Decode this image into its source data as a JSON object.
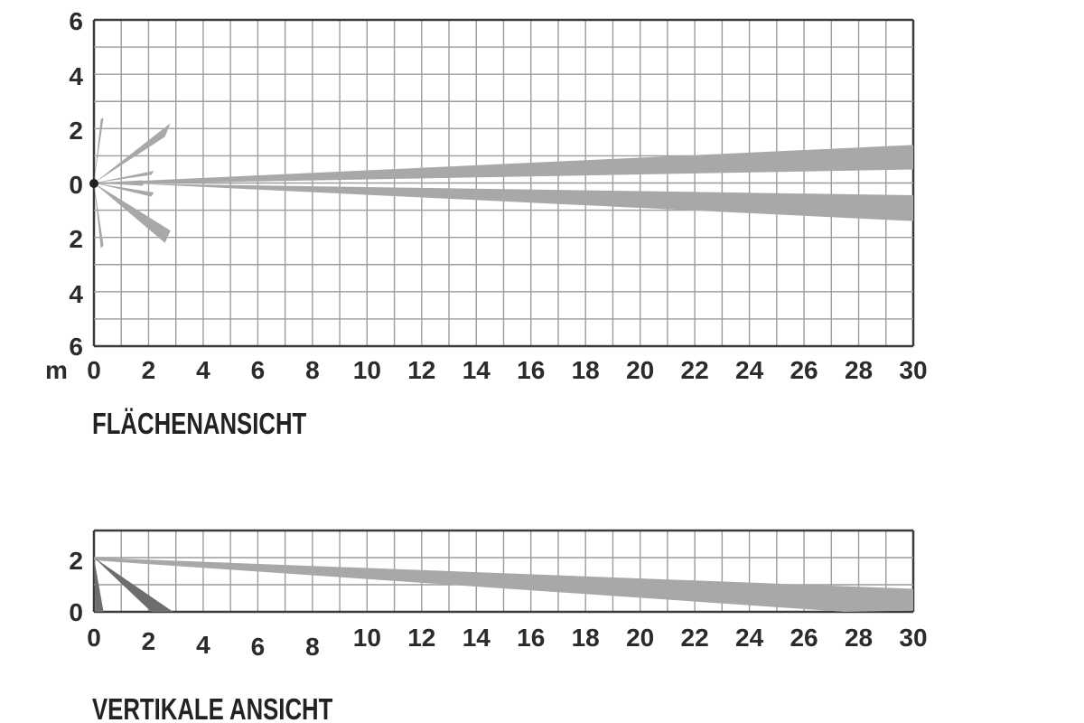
{
  "colors": {
    "grid": "#9c9c9c",
    "axis": "#3a3a3a",
    "beam": "#a8a8a8",
    "beam_dark": "#6d6d6d",
    "text": "#2b2b2b"
  },
  "top_view": {
    "title": "FLÄCHENANSICHT",
    "unit_label": "m",
    "x_ticks": [
      "0",
      "2",
      "4",
      "6",
      "8",
      "10",
      "12",
      "14",
      "16",
      "18",
      "20",
      "22",
      "24",
      "26",
      "28",
      "30"
    ],
    "y_ticks": [
      "6",
      "4",
      "2",
      "0",
      "2",
      "4",
      "6"
    ],
    "x_range": [
      0,
      30
    ],
    "y_range": [
      -6,
      6
    ],
    "beams": [
      {
        "name": "long-upper",
        "points": [
          [
            0,
            0
          ],
          [
            30,
            1.4
          ],
          [
            30,
            0.5
          ],
          [
            0,
            -0.05
          ]
        ]
      },
      {
        "name": "long-lower",
        "points": [
          [
            0,
            0
          ],
          [
            30,
            -0.45
          ],
          [
            30,
            -1.4
          ],
          [
            0,
            0.05
          ]
        ]
      },
      {
        "name": "short-upper-outer",
        "points": [
          [
            0,
            0
          ],
          [
            2.8,
            2.2
          ],
          [
            2.6,
            1.7
          ]
        ]
      },
      {
        "name": "short-lower-outer",
        "points": [
          [
            0,
            0
          ],
          [
            2.8,
            -1.75
          ],
          [
            2.6,
            -2.2
          ]
        ]
      },
      {
        "name": "short-upper-mid",
        "points": [
          [
            0,
            0
          ],
          [
            2.2,
            0.45
          ],
          [
            2.1,
            0.3
          ]
        ]
      },
      {
        "name": "short-lower-mid",
        "points": [
          [
            0,
            0
          ],
          [
            2.2,
            -0.35
          ],
          [
            2.1,
            -0.5
          ]
        ]
      },
      {
        "name": "short-up-steep",
        "points": [
          [
            0,
            0
          ],
          [
            0.35,
            2.4
          ],
          [
            0.25,
            2.35
          ]
        ]
      },
      {
        "name": "short-down-steep",
        "points": [
          [
            0,
            0
          ],
          [
            0.35,
            -2.3
          ],
          [
            0.25,
            -2.4
          ]
        ]
      },
      {
        "name": "short-center",
        "points": [
          [
            0,
            0
          ],
          [
            1.8,
            0.1
          ],
          [
            1.8,
            -0.1
          ]
        ]
      }
    ]
  },
  "side_view": {
    "title": "VERTIKALE ANSICHT",
    "x_ticks": [
      "0",
      "2",
      "4",
      "6",
      "8",
      "10",
      "12",
      "14",
      "16",
      "18",
      "20",
      "22",
      "24",
      "26",
      "28",
      "30"
    ],
    "y_ticks": [
      "2",
      "0"
    ],
    "x_range": [
      0,
      30
    ],
    "y_range": [
      0,
      3
    ],
    "beams": [
      {
        "name": "long-down",
        "points": [
          [
            0,
            2
          ],
          [
            30,
            0.85
          ],
          [
            30,
            0.05
          ],
          [
            27.5,
            0
          ],
          [
            0,
            1.9
          ]
        ]
      },
      {
        "name": "short-down",
        "points": [
          [
            0,
            2
          ],
          [
            2.9,
            0
          ],
          [
            2.1,
            0
          ]
        ]
      },
      {
        "name": "steep-down",
        "points": [
          [
            0,
            2
          ],
          [
            0.35,
            0
          ],
          [
            0.05,
            0
          ]
        ]
      }
    ]
  }
}
